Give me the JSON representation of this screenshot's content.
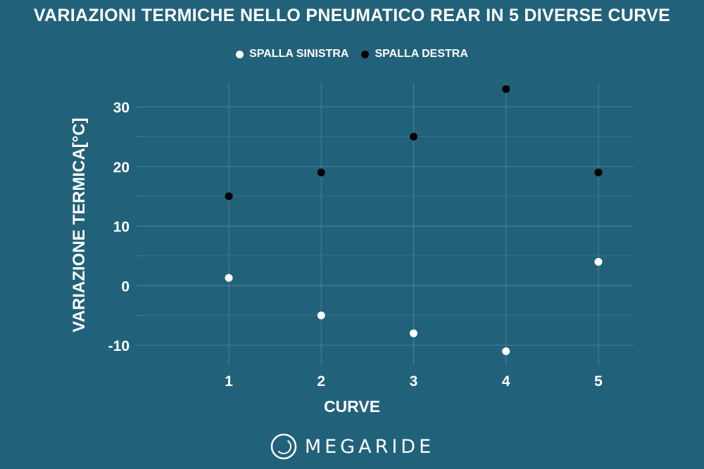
{
  "chart_data": {
    "type": "scatter",
    "title": "VARIAZIONI TERMICHE NELLO PNEUMATICO REAR IN 5 DIVERSE CURVE",
    "xlabel": "CURVE",
    "ylabel": "VARIAZIONE TERMICA[°C]",
    "x": [
      1,
      2,
      3,
      4,
      5
    ],
    "x_ticks": [
      "1",
      "2",
      "3",
      "4",
      "5"
    ],
    "y_ticks": [
      "30",
      "20",
      "10",
      "0",
      "-10"
    ],
    "y_tick_values": [
      30,
      20,
      10,
      0,
      -10
    ],
    "xlim": [
      0,
      5.4
    ],
    "ylim": [
      -11,
      34
    ],
    "grid": true,
    "legend_position": "top-center",
    "series": [
      {
        "name": "SPALLA SINISTRA",
        "color": "#ffffff",
        "values": [
          1.3,
          -5,
          -8,
          -11,
          4
        ]
      },
      {
        "name": "SPALLA DESTRA",
        "color": "#000000",
        "values": [
          15,
          19,
          25,
          33,
          19
        ]
      }
    ]
  },
  "branding": {
    "logo_text": "MEGARIDE",
    "logo_icon": "megaride-ring-icon"
  },
  "colors": {
    "background": "#22617a",
    "grid": "#4a86a0",
    "text": "#ffffff"
  }
}
